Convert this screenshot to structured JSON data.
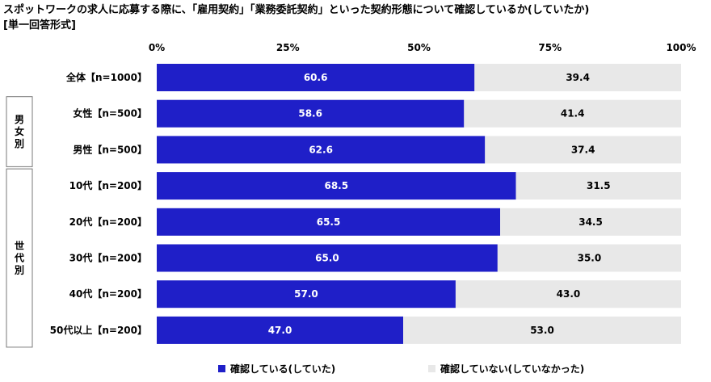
{
  "title": "スポットワークの求人に応募する際に、「雇用契約」「業務委託契約」といった契約形態について確認しているか(していたか)",
  "subtitle": "[単一回答形式]",
  "colors": {
    "confirmed": "#1f1fc8",
    "not_confirmed": "#e8e8e8"
  },
  "chart_data": {
    "type": "bar",
    "orientation": "horizontal",
    "stacked": true,
    "percent": true,
    "xlim": [
      0,
      100
    ],
    "ticks": [
      "0%",
      "25%",
      "50%",
      "75%",
      "100%"
    ],
    "tick_values": [
      0,
      25,
      50,
      75,
      100
    ],
    "categories": [
      "全体【n=1000】",
      "女性【n=500】",
      "男性【n=500】",
      "10代【n=200】",
      "20代【n=200】",
      "30代【n=200】",
      "40代【n=200】",
      "50代以上【n=200】"
    ],
    "groups": [
      {
        "label": "男女別",
        "start": 1,
        "end": 2
      },
      {
        "label": "世代別",
        "start": 3,
        "end": 7
      }
    ],
    "series": [
      {
        "name": "確認している(していた)",
        "values": [
          60.6,
          58.6,
          62.6,
          68.5,
          65.5,
          65.0,
          57.0,
          47.0
        ],
        "labels": [
          "60.6",
          "58.6",
          "62.6",
          "68.5",
          "65.5",
          "65.0",
          "57.0",
          "47.0"
        ]
      },
      {
        "name": "確認していない(していなかった)",
        "values": [
          39.4,
          41.4,
          37.4,
          31.5,
          34.5,
          35.0,
          43.0,
          53.0
        ],
        "labels": [
          "39.4",
          "41.4",
          "37.4",
          "31.5",
          "34.5",
          "35.0",
          "43.0",
          "53.0"
        ]
      }
    ],
    "legend_position": "bottom"
  }
}
